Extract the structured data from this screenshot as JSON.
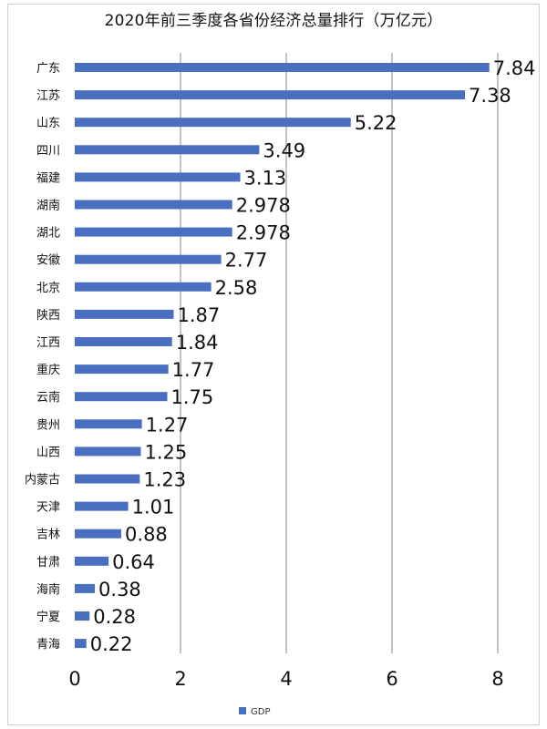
{
  "chart_data": {
    "type": "bar",
    "orientation": "horizontal",
    "title": "2020年前三季度各省份经济总量排行（万亿元）",
    "categories": [
      "广东",
      "江苏",
      "山东",
      "四川",
      "福建",
      "湖南",
      "湖北",
      "安徽",
      "北京",
      "陕西",
      "江西",
      "重庆",
      "云南",
      "贵州",
      "山西",
      "内蒙古",
      "天津",
      "吉林",
      "甘肃",
      "海南",
      "宁夏",
      "青海"
    ],
    "series": [
      {
        "name": "GDP",
        "values": [
          7.84,
          7.38,
          5.22,
          3.49,
          3.13,
          2.978,
          2.978,
          2.77,
          2.58,
          1.87,
          1.84,
          1.77,
          1.75,
          1.27,
          1.25,
          1.23,
          1.01,
          0.88,
          0.64,
          0.38,
          0.28,
          0.22
        ],
        "color": "#4a6fc1"
      }
    ],
    "data_labels": [
      "7.84",
      "7.38",
      "5.22",
      "3.49",
      "3.13",
      "2.978",
      "2.978",
      "2.77",
      "2.58",
      "1.87",
      "1.84",
      "1.77",
      "1.75",
      "1.27",
      "1.25",
      "1.23",
      "1.01",
      "0.88",
      "0.64",
      "0.38",
      "0.28",
      "0.22"
    ],
    "xlim": [
      0,
      8
    ],
    "x_ticks": [
      "0",
      "2",
      "4",
      "6",
      "8"
    ],
    "grid": "vertical",
    "legend": "bottom"
  }
}
